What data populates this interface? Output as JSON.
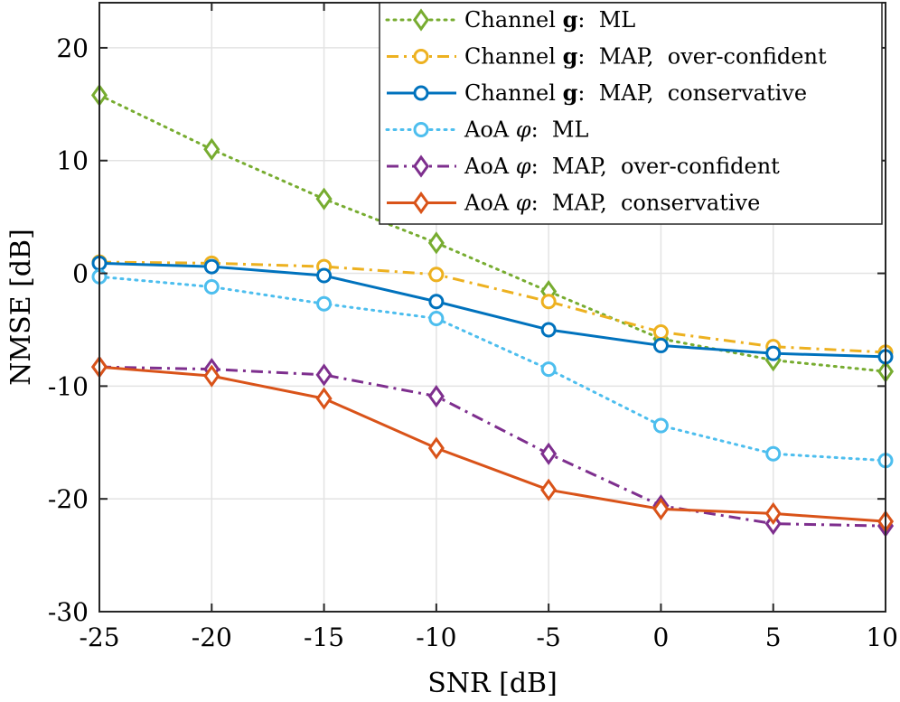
{
  "chart_data": {
    "type": "line",
    "title": "",
    "xlabel": "SNR [dB]",
    "ylabel": "NMSE [dB]",
    "x": [
      -25,
      -20,
      -15,
      -10,
      -5,
      0,
      5,
      10
    ],
    "xlim": [
      -25,
      10
    ],
    "ylim": [
      -30,
      24
    ],
    "xticks": [
      -25,
      -20,
      -15,
      -10,
      -5,
      0,
      5,
      10
    ],
    "yticks": [
      -30,
      -20,
      -10,
      0,
      10,
      20
    ],
    "grid": true,
    "legend_position": "top-right",
    "series": [
      {
        "name": "Channel g: ML",
        "label_parts": [
          {
            "text": "Channel "
          },
          {
            "text": "g",
            "bold": true
          },
          {
            "text": ":  ML"
          }
        ],
        "color": "#77AC30",
        "dash": "dotted",
        "marker": "diamond",
        "values": [
          15.8,
          11.0,
          6.6,
          2.7,
          -1.6,
          -5.8,
          -7.7,
          -8.7
        ]
      },
      {
        "name": "Channel g: MAP, over-confident",
        "label_parts": [
          {
            "text": "Channel "
          },
          {
            "text": "g",
            "bold": true
          },
          {
            "text": ":  MAP,  over-confident"
          }
        ],
        "color": "#EDB120",
        "dash": "dashdot",
        "marker": "circle",
        "values": [
          1.0,
          0.9,
          0.6,
          -0.1,
          -2.5,
          -5.2,
          -6.5,
          -7.0
        ]
      },
      {
        "name": "Channel g: MAP, conservative",
        "label_parts": [
          {
            "text": "Channel "
          },
          {
            "text": "g",
            "bold": true
          },
          {
            "text": ":  MAP,  conservative"
          }
        ],
        "color": "#0072BD",
        "dash": "solid",
        "marker": "circle",
        "values": [
          0.9,
          0.6,
          -0.2,
          -2.5,
          -5.0,
          -6.4,
          -7.1,
          -7.4
        ]
      },
      {
        "name": "AoA φ: ML",
        "label_parts": [
          {
            "text": "AoA "
          },
          {
            "text": "φ",
            "italic": true
          },
          {
            "text": ":  ML"
          }
        ],
        "color": "#4DBEEE",
        "dash": "dotted",
        "marker": "circle",
        "values": [
          -0.3,
          -1.2,
          -2.7,
          -4.0,
          -8.5,
          -13.5,
          -16.0,
          -16.6
        ]
      },
      {
        "name": "AoA φ: MAP, over-confident",
        "label_parts": [
          {
            "text": "AoA "
          },
          {
            "text": "φ",
            "italic": true
          },
          {
            "text": ":  MAP,  over-confident"
          }
        ],
        "color": "#7E2F8E",
        "dash": "dashdot",
        "marker": "diamond",
        "values": [
          -8.3,
          -8.5,
          -9.0,
          -10.9,
          -16.0,
          -20.6,
          -22.2,
          -22.4
        ]
      },
      {
        "name": "AoA φ: MAP, conservative",
        "label_parts": [
          {
            "text": "AoA "
          },
          {
            "text": "φ",
            "italic": true
          },
          {
            "text": ":  MAP,  conservative"
          }
        ],
        "color": "#D95319",
        "dash": "solid",
        "marker": "diamond",
        "values": [
          -8.3,
          -9.1,
          -11.1,
          -15.5,
          -19.2,
          -20.9,
          -21.3,
          -22.0
        ]
      }
    ]
  }
}
